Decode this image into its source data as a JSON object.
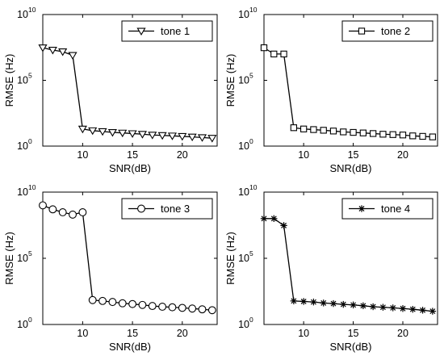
{
  "chart_data": [
    {
      "type": "line",
      "xlabel": "SNR(dB)",
      "ylabel": "RMSE (Hz)",
      "xlim": [
        6,
        23.5
      ],
      "ylim_log10": [
        0,
        10
      ],
      "yscale": "log",
      "xticks": [
        10,
        15,
        20
      ],
      "yticks": [
        {
          "base": "10",
          "exp": "0"
        },
        {
          "base": "10",
          "exp": "5"
        },
        {
          "base": "10",
          "exp": "10"
        }
      ],
      "legend_position": "top-right",
      "series": [
        {
          "name": "tone 1",
          "marker": "triangle-down",
          "x": [
            6,
            7,
            8,
            9,
            10,
            11,
            12,
            13,
            14,
            15,
            16,
            17,
            18,
            19,
            20,
            21,
            22,
            23
          ],
          "y": [
            30000000,
            20000000,
            15000000,
            8000000,
            20,
            15,
            13,
            11,
            10,
            9,
            8,
            7,
            6.5,
            6,
            5.5,
            5,
            4.5,
            4
          ]
        }
      ]
    },
    {
      "type": "line",
      "xlabel": "SNR(dB)",
      "ylabel": "RMSE (Hz)",
      "xlim": [
        6,
        23.5
      ],
      "ylim_log10": [
        0,
        10
      ],
      "yscale": "log",
      "xticks": [
        10,
        15,
        20
      ],
      "yticks": [
        {
          "base": "10",
          "exp": "0"
        },
        {
          "base": "10",
          "exp": "5"
        },
        {
          "base": "10",
          "exp": "10"
        }
      ],
      "legend_position": "top-right",
      "series": [
        {
          "name": "tone 2",
          "marker": "square",
          "x": [
            6,
            7,
            8,
            9,
            10,
            11,
            12,
            13,
            14,
            15,
            16,
            17,
            18,
            19,
            20,
            21,
            22,
            23
          ],
          "y": [
            30000000,
            10000000,
            10000000,
            25,
            20,
            18,
            16,
            14,
            12,
            11,
            10,
            9,
            8,
            7.5,
            7,
            6,
            5.5,
            5
          ]
        }
      ]
    },
    {
      "type": "line",
      "xlabel": "SNR(dB)",
      "ylabel": "RMSE (Hz)",
      "xlim": [
        6,
        23.5
      ],
      "ylim_log10": [
        0,
        10
      ],
      "yscale": "log",
      "xticks": [
        10,
        15,
        20
      ],
      "yticks": [
        {
          "base": "10",
          "exp": "0"
        },
        {
          "base": "10",
          "exp": "5"
        },
        {
          "base": "10",
          "exp": "10"
        }
      ],
      "legend_position": "top-right",
      "series": [
        {
          "name": "tone 3",
          "marker": "circle",
          "x": [
            6,
            7,
            8,
            9,
            10,
            11,
            12,
            13,
            14,
            15,
            16,
            17,
            18,
            19,
            20,
            21,
            22,
            23
          ],
          "y": [
            1000000000,
            500000000,
            300000000,
            200000000,
            300000000,
            70,
            60,
            50,
            40,
            35,
            30,
            25,
            22,
            20,
            18,
            16,
            14,
            12
          ]
        }
      ]
    },
    {
      "type": "line",
      "xlabel": "SNR(dB)",
      "ylabel": "RMSE (Hz)",
      "xlim": [
        6,
        23.5
      ],
      "ylim_log10": [
        0,
        10
      ],
      "yscale": "log",
      "xticks": [
        10,
        15,
        20
      ],
      "yticks": [
        {
          "base": "10",
          "exp": "0"
        },
        {
          "base": "10",
          "exp": "5"
        },
        {
          "base": "10",
          "exp": "10"
        }
      ],
      "legend_position": "top-right",
      "series": [
        {
          "name": "tone 4",
          "marker": "asterisk",
          "x": [
            6,
            7,
            8,
            9,
            10,
            11,
            12,
            13,
            14,
            15,
            16,
            17,
            18,
            19,
            20,
            21,
            22,
            23
          ],
          "y": [
            100000000,
            100000000,
            30000000,
            60,
            55,
            50,
            42,
            38,
            33,
            30,
            26,
            22,
            20,
            18,
            16,
            14,
            12,
            10
          ]
        }
      ]
    }
  ]
}
